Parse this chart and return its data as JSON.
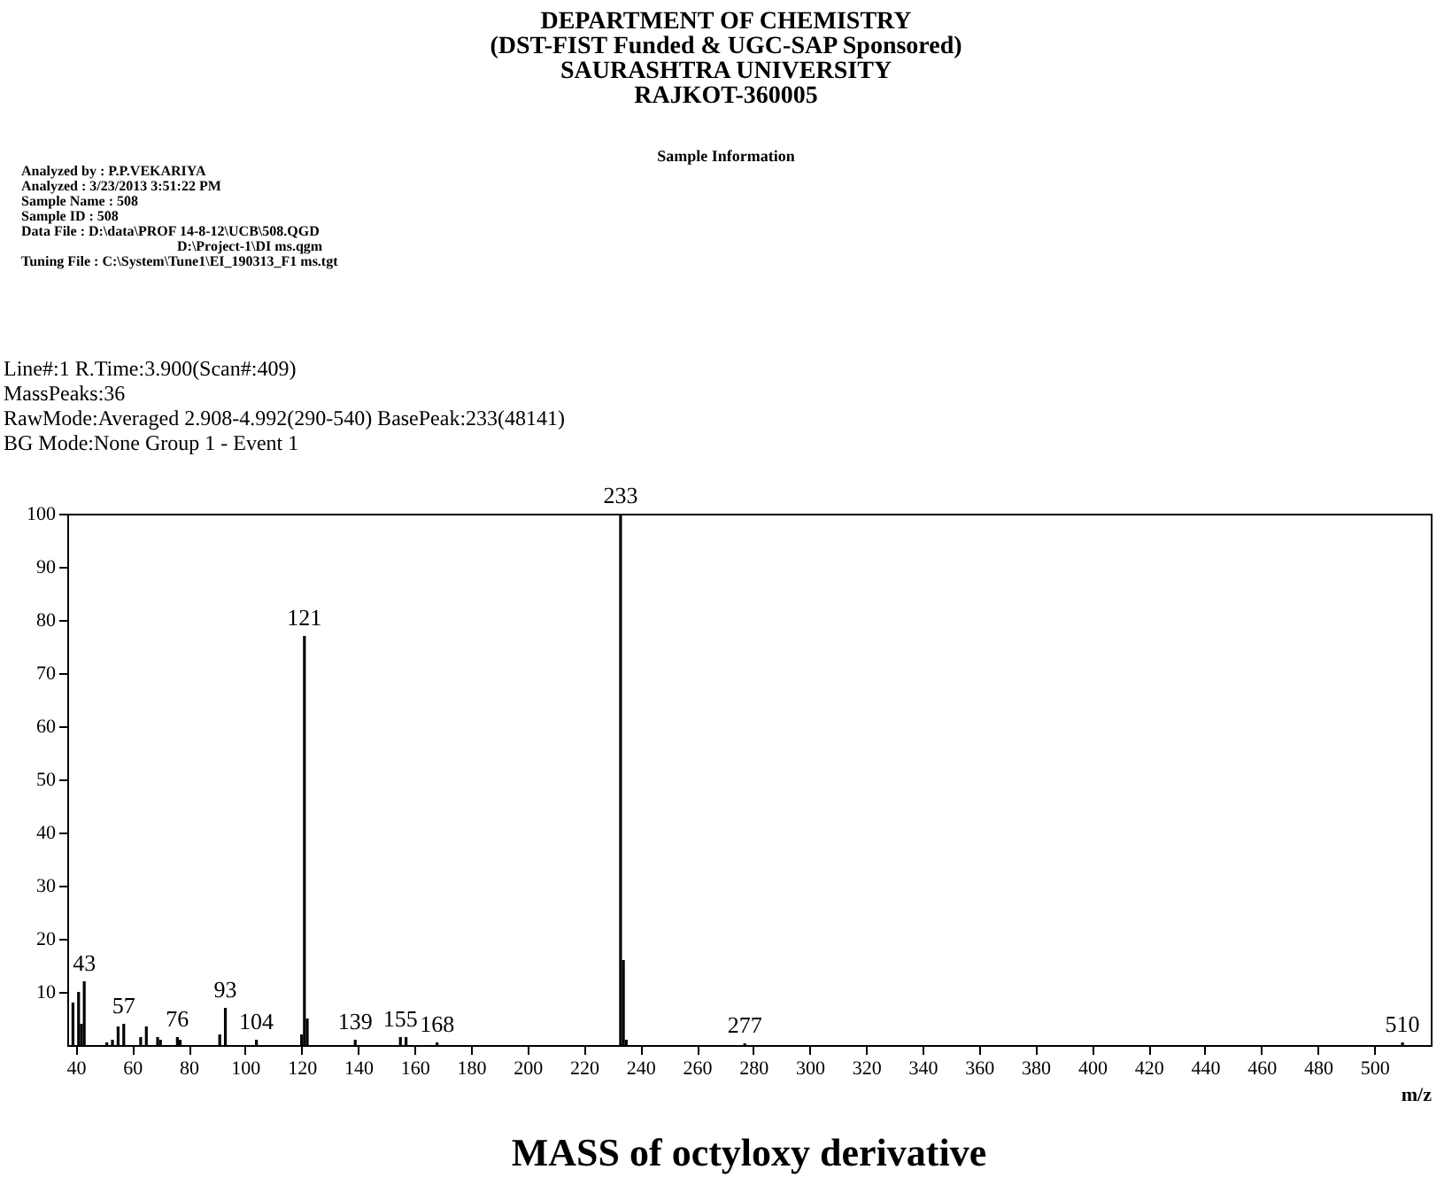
{
  "chart_data": {
    "type": "bar",
    "title": "MASS of octyloxy derivative",
    "xlabel": "m/z",
    "x": [
      39,
      41,
      42,
      43,
      51,
      53,
      55,
      57,
      63,
      65,
      69,
      70,
      76,
      77,
      91,
      93,
      104,
      120,
      121,
      122,
      139,
      155,
      157,
      168,
      233,
      234,
      235,
      277,
      510
    ],
    "values": [
      8,
      10,
      4,
      12,
      0.5,
      1,
      3.5,
      4,
      1.5,
      3.5,
      1.5,
      1,
      1.5,
      1,
      2,
      7,
      1,
      2,
      77,
      5,
      1,
      1.5,
      1.5,
      0.5,
      100,
      16,
      1,
      0.3,
      0.5
    ],
    "color": "#000000",
    "xlim": [
      37,
      520
    ],
    "xticks": [
      40,
      60,
      80,
      100,
      120,
      140,
      160,
      180,
      200,
      220,
      240,
      260,
      280,
      300,
      320,
      340,
      360,
      380,
      400,
      420,
      440,
      460,
      480,
      500
    ],
    "ylim": [
      0,
      100
    ],
    "yticks": [
      10,
      20,
      30,
      40,
      50,
      60,
      70,
      80,
      90,
      100
    ],
    "grid": false,
    "annotations": [
      "DEPARTMENT OF CHEMISTRY",
      "(DST-FIST Funded & UGC-SAP Sponsored)",
      "SAURASHTRA UNIVERSITY",
      "RAJKOT-360005",
      "Sample Information",
      "Analyzed by      : P.P.VEKARIYA",
      "Analyzed           : 3/23/2013 3:51:22 PM",
      "Sample Name    : 508",
      "Sample ID         : 508",
      "Data File          : D:\\data\\PROF 14-8-12\\UCB\\508.QGD",
      "D:\\Project-1\\DI ms.qgm",
      "Tuning File       : C:\\System\\Tune1\\EI_190313_F1 ms.tgt",
      "Line#:1  R.Time:3.900(Scan#:409)",
      "MassPeaks:36",
      "RawMode:Averaged 2.908-4.992(290-540)  BasePeak:233(48141)",
      "BG Mode:None  Group 1 - Event 1",
      {
        "text": "43",
        "x": 43,
        "y": 12
      },
      {
        "text": "57",
        "x": 57,
        "y": 4
      },
      {
        "text": "76",
        "x": 76,
        "y": 1.5
      },
      {
        "text": "93",
        "x": 93,
        "y": 7
      },
      {
        "text": "104",
        "x": 104,
        "y": 1
      },
      {
        "text": "121",
        "x": 121,
        "y": 77
      },
      {
        "text": "139",
        "x": 139,
        "y": 1
      },
      {
        "text": "155",
        "x": 155,
        "y": 1.5
      },
      {
        "text": "168",
        "x": 168,
        "y": 0.5
      },
      {
        "text": "233",
        "x": 233,
        "y": 100
      },
      {
        "text": "277",
        "x": 277,
        "y": 0.3
      },
      {
        "text": "510",
        "x": 510,
        "y": 0.5
      }
    ]
  }
}
